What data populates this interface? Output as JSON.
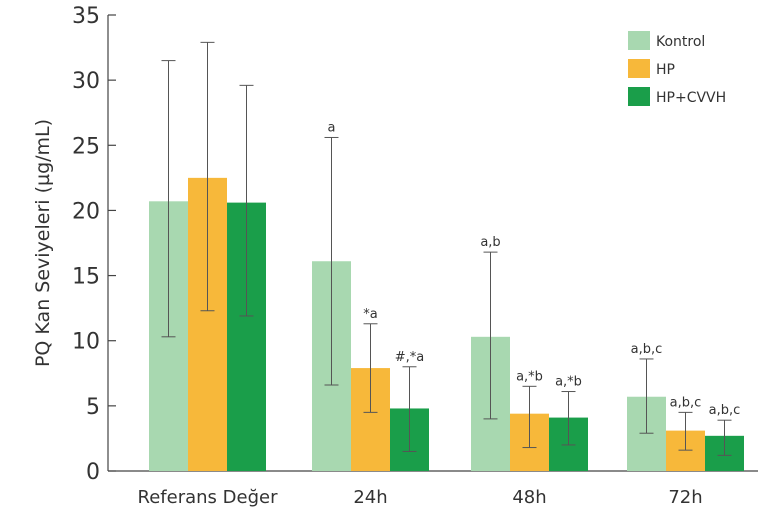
{
  "chart_data": {
    "type": "bar",
    "ylabel": "PQ Kan Seviyeleri (µg/mL)",
    "xlabel": "",
    "ylim": [
      0,
      35
    ],
    "yticks": [
      0,
      5,
      10,
      15,
      20,
      25,
      30,
      35
    ],
    "grid": false,
    "legend_position": "top-right",
    "categories": [
      "Referans Değer",
      "24h",
      "48h",
      "72h"
    ],
    "series": [
      {
        "name": "Kontrol",
        "color": "#a8d8b0",
        "values": [
          20.7,
          16.1,
          10.3,
          5.7
        ],
        "error_low": [
          10.3,
          6.6,
          4.0,
          2.9
        ],
        "error_high": [
          31.5,
          25.6,
          16.8,
          8.6
        ],
        "annotations": [
          "",
          "a",
          "a,b",
          "a,b,c"
        ]
      },
      {
        "name": "HP",
        "color": "#f7b83a",
        "values": [
          22.5,
          7.9,
          4.4,
          3.1
        ],
        "error_low": [
          12.3,
          4.5,
          1.8,
          1.6
        ],
        "error_high": [
          32.9,
          11.3,
          6.5,
          4.5
        ],
        "annotations": [
          "",
          "*a",
          "a,*b",
          "a,b,c"
        ]
      },
      {
        "name": "HP+CVVH",
        "color": "#1a9e4a",
        "values": [
          20.6,
          4.8,
          4.1,
          2.7
        ],
        "error_low": [
          11.9,
          1.5,
          2.0,
          1.2
        ],
        "error_high": [
          29.6,
          8.0,
          6.1,
          3.9
        ],
        "annotations": [
          "",
          "#,*a",
          "a,*b",
          "a,b,c"
        ]
      }
    ]
  }
}
